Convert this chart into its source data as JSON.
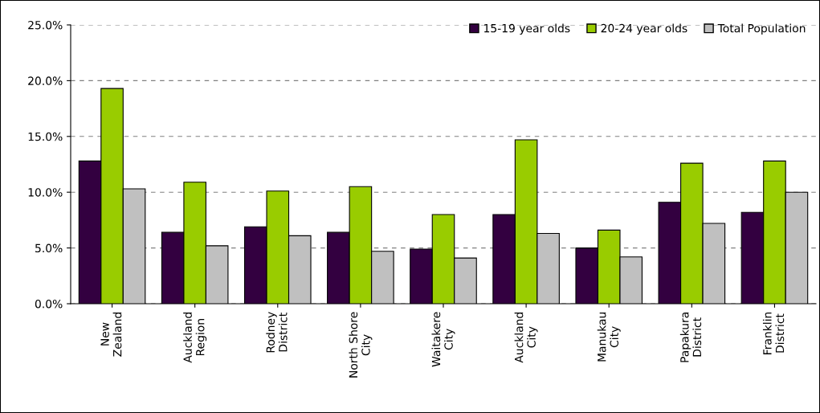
{
  "chart_data": {
    "type": "bar",
    "categories": [
      "New\nZealand",
      "Auckland\nRegion",
      "Rodney\nDistrict",
      "North Shore\nCity",
      "Waitakere\nCity",
      "Auckland\nCity",
      "Manukau\nCity",
      "Papakura\nDistrict",
      "Franklin\nDistrict"
    ],
    "series": [
      {
        "name": "15-19 year olds",
        "color": "#330040",
        "values": [
          12.8,
          6.4,
          6.9,
          6.4,
          4.9,
          8.0,
          5.0,
          9.1,
          8.2
        ]
      },
      {
        "name": "20-24 year olds",
        "color": "#99cc00",
        "values": [
          19.3,
          10.9,
          10.1,
          10.5,
          8.0,
          14.7,
          6.6,
          12.6,
          12.8
        ]
      },
      {
        "name": "Total Population",
        "color": "#c0c0c0",
        "values": [
          10.3,
          5.2,
          6.1,
          4.7,
          4.1,
          6.3,
          4.2,
          7.2,
          10.0
        ]
      }
    ],
    "ylim": [
      0,
      25
    ],
    "yticks": [
      {
        "value": 0,
        "label": "0.0%"
      },
      {
        "value": 5,
        "label": "5.0%"
      },
      {
        "value": 10,
        "label": "10.0%"
      },
      {
        "value": 15,
        "label": "15.0%"
      },
      {
        "value": 20,
        "label": "20.0%"
      },
      {
        "value": 25,
        "label": "25.0%"
      }
    ],
    "grid": "y",
    "legend": "top right"
  }
}
